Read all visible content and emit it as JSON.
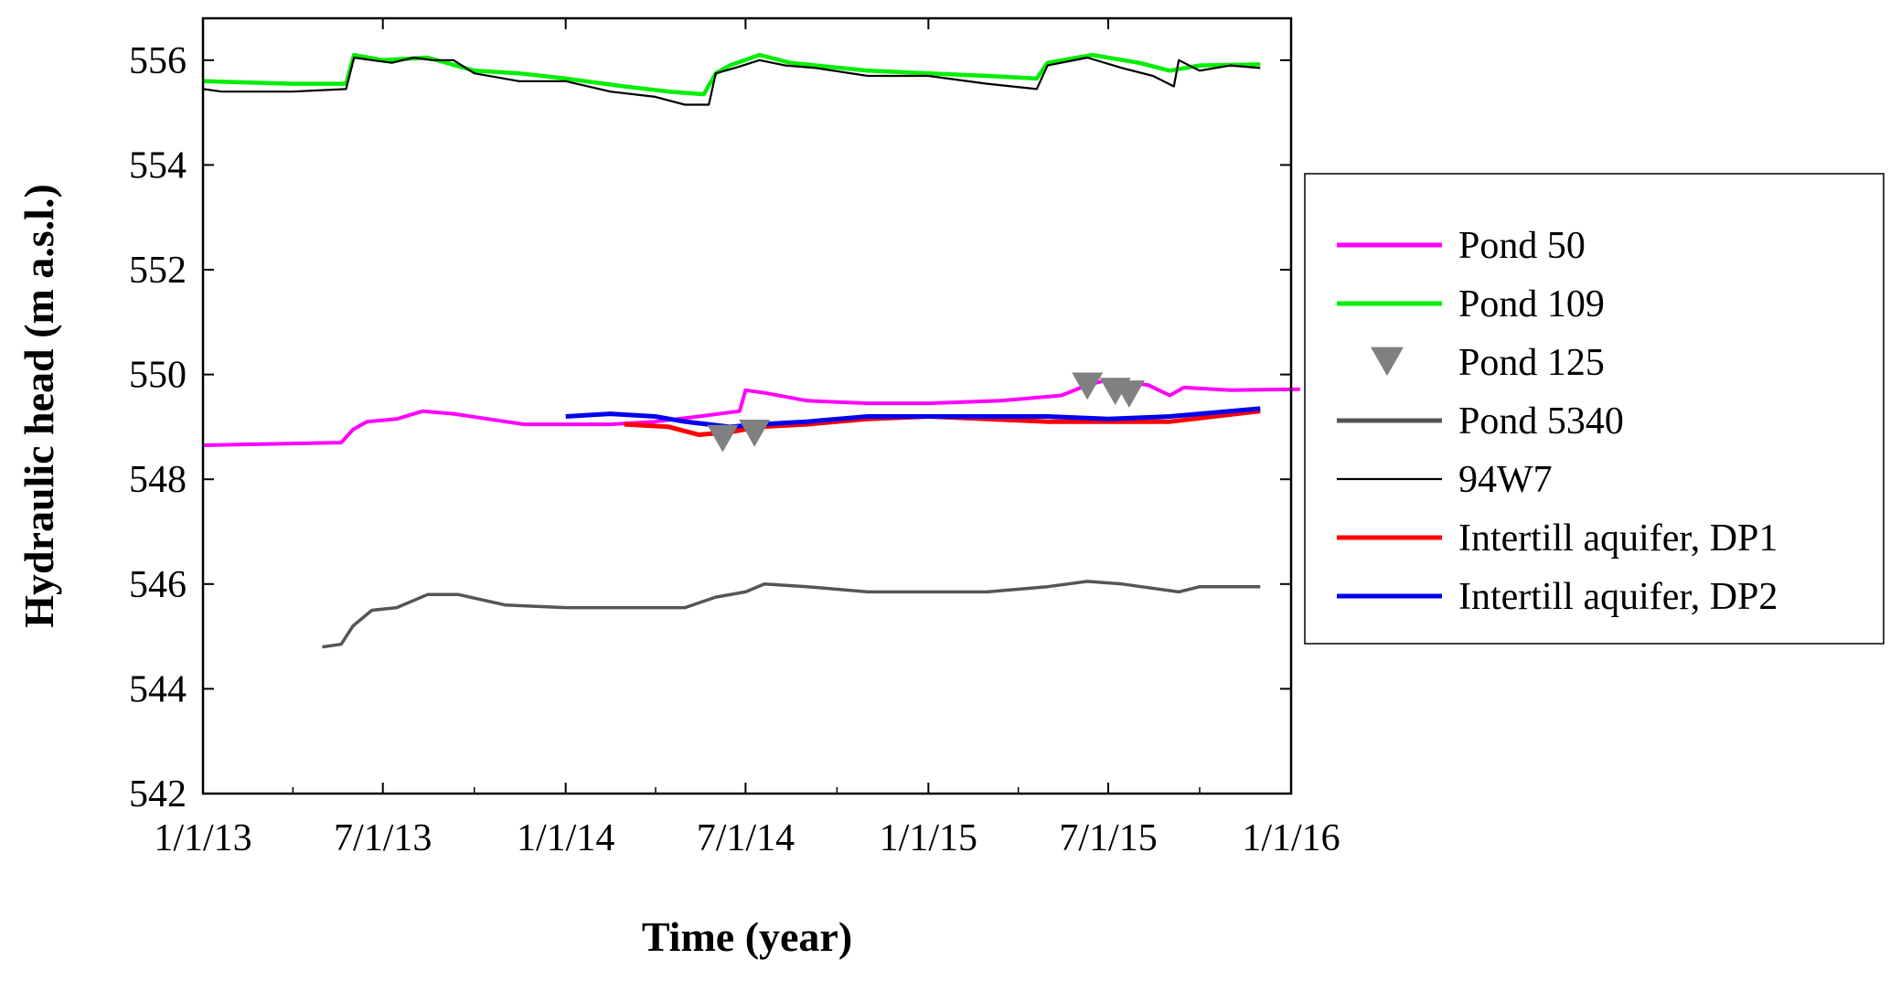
{
  "chart_data": {
    "type": "line",
    "xlabel": "Time (year)",
    "ylabel": "Hydraulic head (m a.s.l.)",
    "xlim": [
      "2013-01-01",
      "2016-01-01"
    ],
    "ylim": [
      542,
      556.8
    ],
    "x_ticks": [
      "2013-01-01",
      "2013-07-01",
      "2014-01-01",
      "2014-07-01",
      "2015-01-01",
      "2015-07-01",
      "2016-01-01"
    ],
    "x_tick_labels": [
      "1/1/13",
      "7/1/13",
      "1/1/14",
      "7/1/14",
      "1/1/15",
      "7/1/15",
      "1/1/16"
    ],
    "y_ticks": [
      542,
      544,
      546,
      548,
      550,
      552,
      554,
      556
    ],
    "y_tick_labels": [
      "542",
      "544",
      "546",
      "548",
      "550",
      "552",
      "554",
      "556"
    ],
    "legend_position": "right",
    "grid": false,
    "series": [
      {
        "name": "Pond 50",
        "color": "#ff00ff",
        "style": "line",
        "points": [
          [
            "2013-01-01",
            548.65
          ],
          [
            "2013-05-20",
            548.7
          ],
          [
            "2013-06-01",
            548.95
          ],
          [
            "2013-06-15",
            549.1
          ],
          [
            "2013-07-15",
            549.15
          ],
          [
            "2013-08-10",
            549.3
          ],
          [
            "2013-09-10",
            549.25
          ],
          [
            "2013-10-15",
            549.15
          ],
          [
            "2013-11-20",
            549.05
          ],
          [
            "2013-12-31",
            549.05
          ],
          [
            "2014-02-15",
            549.05
          ],
          [
            "2014-04-01",
            549.1
          ],
          [
            "2014-05-15",
            549.2
          ],
          [
            "2014-06-25",
            549.3
          ],
          [
            "2014-07-01",
            549.7
          ],
          [
            "2014-07-20",
            549.65
          ],
          [
            "2014-09-01",
            549.5
          ],
          [
            "2014-11-01",
            549.45
          ],
          [
            "2015-01-01",
            549.45
          ],
          [
            "2015-03-15",
            549.5
          ],
          [
            "2015-05-15",
            549.6
          ],
          [
            "2015-06-10",
            549.8
          ],
          [
            "2015-07-01",
            549.9
          ],
          [
            "2015-08-10",
            549.8
          ],
          [
            "2015-09-01",
            549.6
          ],
          [
            "2015-09-15",
            549.75
          ],
          [
            "2015-11-01",
            549.7
          ],
          [
            "2016-01-10",
            549.72
          ]
        ]
      },
      {
        "name": "Pond 109",
        "color": "#00ee00",
        "style": "line",
        "points": [
          [
            "2013-01-01",
            555.6
          ],
          [
            "2013-04-01",
            555.55
          ],
          [
            "2013-05-25",
            555.55
          ],
          [
            "2013-06-02",
            556.1
          ],
          [
            "2013-07-01",
            556.0
          ],
          [
            "2013-08-15",
            556.05
          ],
          [
            "2013-10-01",
            555.8
          ],
          [
            "2013-11-15",
            555.75
          ],
          [
            "2014-01-01",
            555.65
          ],
          [
            "2014-03-01",
            555.5
          ],
          [
            "2014-04-15",
            555.4
          ],
          [
            "2014-05-20",
            555.35
          ],
          [
            "2014-06-01",
            555.75
          ],
          [
            "2014-06-15",
            555.9
          ],
          [
            "2014-07-15",
            556.1
          ],
          [
            "2014-08-15",
            555.95
          ],
          [
            "2014-11-01",
            555.8
          ],
          [
            "2015-01-01",
            555.75
          ],
          [
            "2015-03-01",
            555.7
          ],
          [
            "2015-04-20",
            555.65
          ],
          [
            "2015-05-01",
            555.95
          ],
          [
            "2015-06-15",
            556.1
          ],
          [
            "2015-08-01",
            555.95
          ],
          [
            "2015-09-01",
            555.8
          ],
          [
            "2015-10-01",
            555.9
          ],
          [
            "2015-12-01",
            555.92
          ]
        ]
      },
      {
        "name": "Pond 125",
        "color": "#808080",
        "style": "markers",
        "marker": "triangle-down",
        "points": [
          [
            "2014-06-08",
            548.8
          ],
          [
            "2014-07-10",
            548.9
          ],
          [
            "2015-06-10",
            549.8
          ],
          [
            "2015-07-08",
            549.7
          ],
          [
            "2015-07-22",
            549.65
          ]
        ]
      },
      {
        "name": "Pond 5340",
        "color": "#555555",
        "style": "line",
        "points": [
          [
            "2013-05-01",
            544.8
          ],
          [
            "2013-05-20",
            544.85
          ],
          [
            "2013-06-01",
            545.2
          ],
          [
            "2013-06-20",
            545.5
          ],
          [
            "2013-07-15",
            545.55
          ],
          [
            "2013-08-15",
            545.8
          ],
          [
            "2013-09-15",
            545.8
          ],
          [
            "2013-11-01",
            545.6
          ],
          [
            "2014-01-01",
            545.55
          ],
          [
            "2014-03-01",
            545.55
          ],
          [
            "2014-05-01",
            545.55
          ],
          [
            "2014-06-01",
            545.75
          ],
          [
            "2014-07-01",
            545.85
          ],
          [
            "2014-07-20",
            546.0
          ],
          [
            "2014-09-01",
            545.95
          ],
          [
            "2014-11-01",
            545.85
          ],
          [
            "2015-01-01",
            545.85
          ],
          [
            "2015-03-01",
            545.85
          ],
          [
            "2015-05-01",
            545.95
          ],
          [
            "2015-06-10",
            546.05
          ],
          [
            "2015-07-15",
            546.0
          ],
          [
            "2015-09-10",
            545.85
          ],
          [
            "2015-10-01",
            545.95
          ],
          [
            "2015-12-01",
            545.95
          ]
        ]
      },
      {
        "name": "94W7",
        "color": "#000000",
        "style": "line",
        "points": [
          [
            "2013-01-01",
            555.45
          ],
          [
            "2013-01-20",
            555.4
          ],
          [
            "2013-04-01",
            555.4
          ],
          [
            "2013-05-25",
            555.45
          ],
          [
            "2013-06-02",
            556.05
          ],
          [
            "2013-06-20",
            556.0
          ],
          [
            "2013-07-10",
            555.95
          ],
          [
            "2013-08-01",
            556.05
          ],
          [
            "2013-08-20",
            556.0
          ],
          [
            "2013-09-10",
            556.0
          ],
          [
            "2013-10-01",
            555.75
          ],
          [
            "2013-11-15",
            555.6
          ],
          [
            "2014-01-01",
            555.6
          ],
          [
            "2014-02-15",
            555.4
          ],
          [
            "2014-04-01",
            555.3
          ],
          [
            "2014-05-01",
            555.15
          ],
          [
            "2014-05-25",
            555.15
          ],
          [
            "2014-06-01",
            555.75
          ],
          [
            "2014-06-20",
            555.85
          ],
          [
            "2014-07-15",
            556.0
          ],
          [
            "2014-08-10",
            555.9
          ],
          [
            "2014-09-10",
            555.85
          ],
          [
            "2014-11-01",
            555.7
          ],
          [
            "2015-01-01",
            555.7
          ],
          [
            "2015-03-01",
            555.55
          ],
          [
            "2015-04-20",
            555.45
          ],
          [
            "2015-05-01",
            555.9
          ],
          [
            "2015-06-10",
            556.05
          ],
          [
            "2015-07-15",
            555.85
          ],
          [
            "2015-08-15",
            555.7
          ],
          [
            "2015-09-05",
            555.5
          ],
          [
            "2015-09-10",
            556.0
          ],
          [
            "2015-10-01",
            555.8
          ],
          [
            "2015-11-01",
            555.9
          ],
          [
            "2015-12-01",
            555.85
          ]
        ]
      },
      {
        "name": "Intertill aquifer, DP1",
        "color": "#ff0000",
        "style": "line",
        "points": [
          [
            "2014-03-01",
            549.05
          ],
          [
            "2014-04-15",
            549.0
          ],
          [
            "2014-05-15",
            548.85
          ],
          [
            "2014-06-15",
            548.9
          ],
          [
            "2014-07-15",
            549.0
          ],
          [
            "2014-09-01",
            549.05
          ],
          [
            "2014-11-01",
            549.15
          ],
          [
            "2015-01-01",
            549.2
          ],
          [
            "2015-03-01",
            549.15
          ],
          [
            "2015-05-01",
            549.1
          ],
          [
            "2015-07-01",
            549.1
          ],
          [
            "2015-09-01",
            549.1
          ],
          [
            "2015-12-01",
            549.3
          ]
        ]
      },
      {
        "name": "Intertill aquifer, DP2",
        "color": "#0000ee",
        "style": "line",
        "points": [
          [
            "2014-01-01",
            549.2
          ],
          [
            "2014-02-15",
            549.25
          ],
          [
            "2014-04-01",
            549.2
          ],
          [
            "2014-05-01",
            549.1
          ],
          [
            "2014-06-15",
            549.0
          ],
          [
            "2014-07-15",
            549.05
          ],
          [
            "2014-09-01",
            549.1
          ],
          [
            "2014-11-01",
            549.2
          ],
          [
            "2015-01-01",
            549.2
          ],
          [
            "2015-03-01",
            549.2
          ],
          [
            "2015-05-01",
            549.2
          ],
          [
            "2015-07-01",
            549.15
          ],
          [
            "2015-09-01",
            549.2
          ],
          [
            "2015-12-01",
            549.35
          ]
        ]
      }
    ]
  }
}
